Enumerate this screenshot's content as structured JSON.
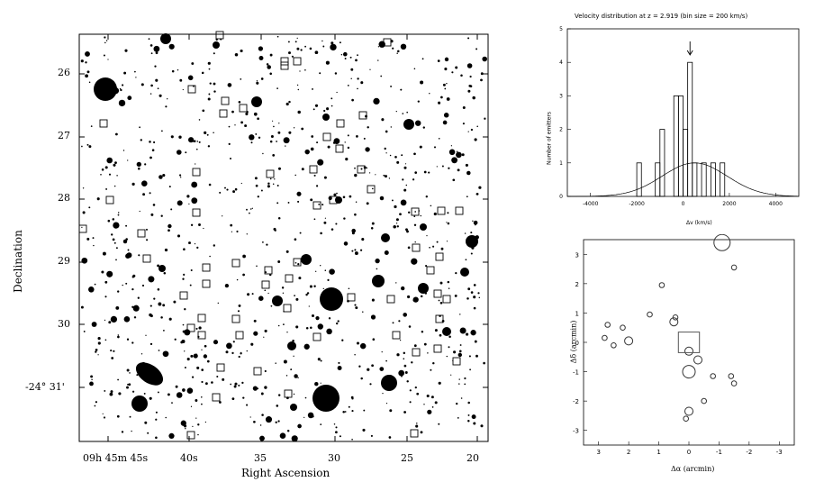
{
  "left_panel": {
    "ylabel": "Declination",
    "xlabel": "Right Ascension",
    "y_ticks": [
      "26",
      "27",
      "28",
      "29",
      "30",
      "-24° 31'"
    ],
    "x_ticks": [
      "09h 45m 45s",
      "40s",
      "35",
      "30",
      "25",
      "20"
    ],
    "colors": {
      "ink": "#000000",
      "paper": "#ffffff"
    }
  },
  "hist_panel": {
    "chart_data": {
      "type": "bar",
      "title": "Velocity distribution at z = 2.919 (bin size = 200 km/s)",
      "xlabel": "Δv (km/s)",
      "ylabel": "Number of emitters",
      "xlim": [
        -5000,
        5000
      ],
      "ylim": [
        0,
        5
      ],
      "x_ticks": [
        "-4000",
        "-2000",
        "0",
        "2000",
        "4000"
      ],
      "y_ticks": [
        "0",
        "1",
        "2",
        "3",
        "4",
        "5"
      ],
      "bin_size": 200,
      "bins": [
        {
          "x": -1900,
          "value": 1
        },
        {
          "x": -1100,
          "value": 1
        },
        {
          "x": -900,
          "value": 2
        },
        {
          "x": -300,
          "value": 3
        },
        {
          "x": -100,
          "value": 3
        },
        {
          "x": 100,
          "value": 2
        },
        {
          "x": 300,
          "value": 4
        },
        {
          "x": 500,
          "value": 1
        },
        {
          "x": 900,
          "value": 1
        },
        {
          "x": 1300,
          "value": 1
        },
        {
          "x": 1700,
          "value": 1
        }
      ],
      "gaussian": {
        "mean": 500,
        "sigma": 1400,
        "peak": 1.0
      },
      "arrow_x": 300
    }
  },
  "sky_panel": {
    "chart_data": {
      "type": "scatter",
      "xlabel": "Δα (arcmin)",
      "ylabel": "Δδ (arcmin)",
      "xlim": [
        3.5,
        -3.5
      ],
      "ylim": [
        -3.5,
        3.5
      ],
      "x_ticks": [
        "3",
        "2",
        "1",
        "0",
        "-1",
        "-2",
        "-3"
      ],
      "y_ticks": [
        "3",
        "2",
        "1",
        "0",
        "-1",
        "-2",
        "-3"
      ],
      "points": [
        {
          "x": -1.1,
          "y": 3.4,
          "size": 4
        },
        {
          "x": -1.5,
          "y": 2.55,
          "size": 1
        },
        {
          "x": 0.9,
          "y": 1.95,
          "size": 1
        },
        {
          "x": 0.45,
          "y": 0.85,
          "size": 1
        },
        {
          "x": 0.5,
          "y": 0.7,
          "size": 2
        },
        {
          "x": 1.3,
          "y": 0.95,
          "size": 1
        },
        {
          "x": 2.0,
          "y": 0.05,
          "size": 2
        },
        {
          "x": 2.2,
          "y": 0.5,
          "size": 1
        },
        {
          "x": 2.5,
          "y": -0.1,
          "size": 1
        },
        {
          "x": 2.7,
          "y": 0.6,
          "size": 1
        },
        {
          "x": 2.8,
          "y": 0.15,
          "size": 1
        },
        {
          "x": 0.0,
          "y": -0.3,
          "size": 2
        },
        {
          "x": -0.3,
          "y": -0.6,
          "size": 2
        },
        {
          "x": 0.0,
          "y": -1.0,
          "size": 3
        },
        {
          "x": -0.8,
          "y": -1.15,
          "size": 1
        },
        {
          "x": -1.4,
          "y": -1.15,
          "size": 1
        },
        {
          "x": -1.5,
          "y": -1.4,
          "size": 1
        },
        {
          "x": -0.5,
          "y": -2.0,
          "size": 1
        },
        {
          "x": 0.0,
          "y": -2.35,
          "size": 2
        },
        {
          "x": 0.1,
          "y": -2.6,
          "size": 1
        }
      ],
      "box": {
        "x": 0.0,
        "y": 0.0,
        "half_width": 0.35
      }
    }
  }
}
